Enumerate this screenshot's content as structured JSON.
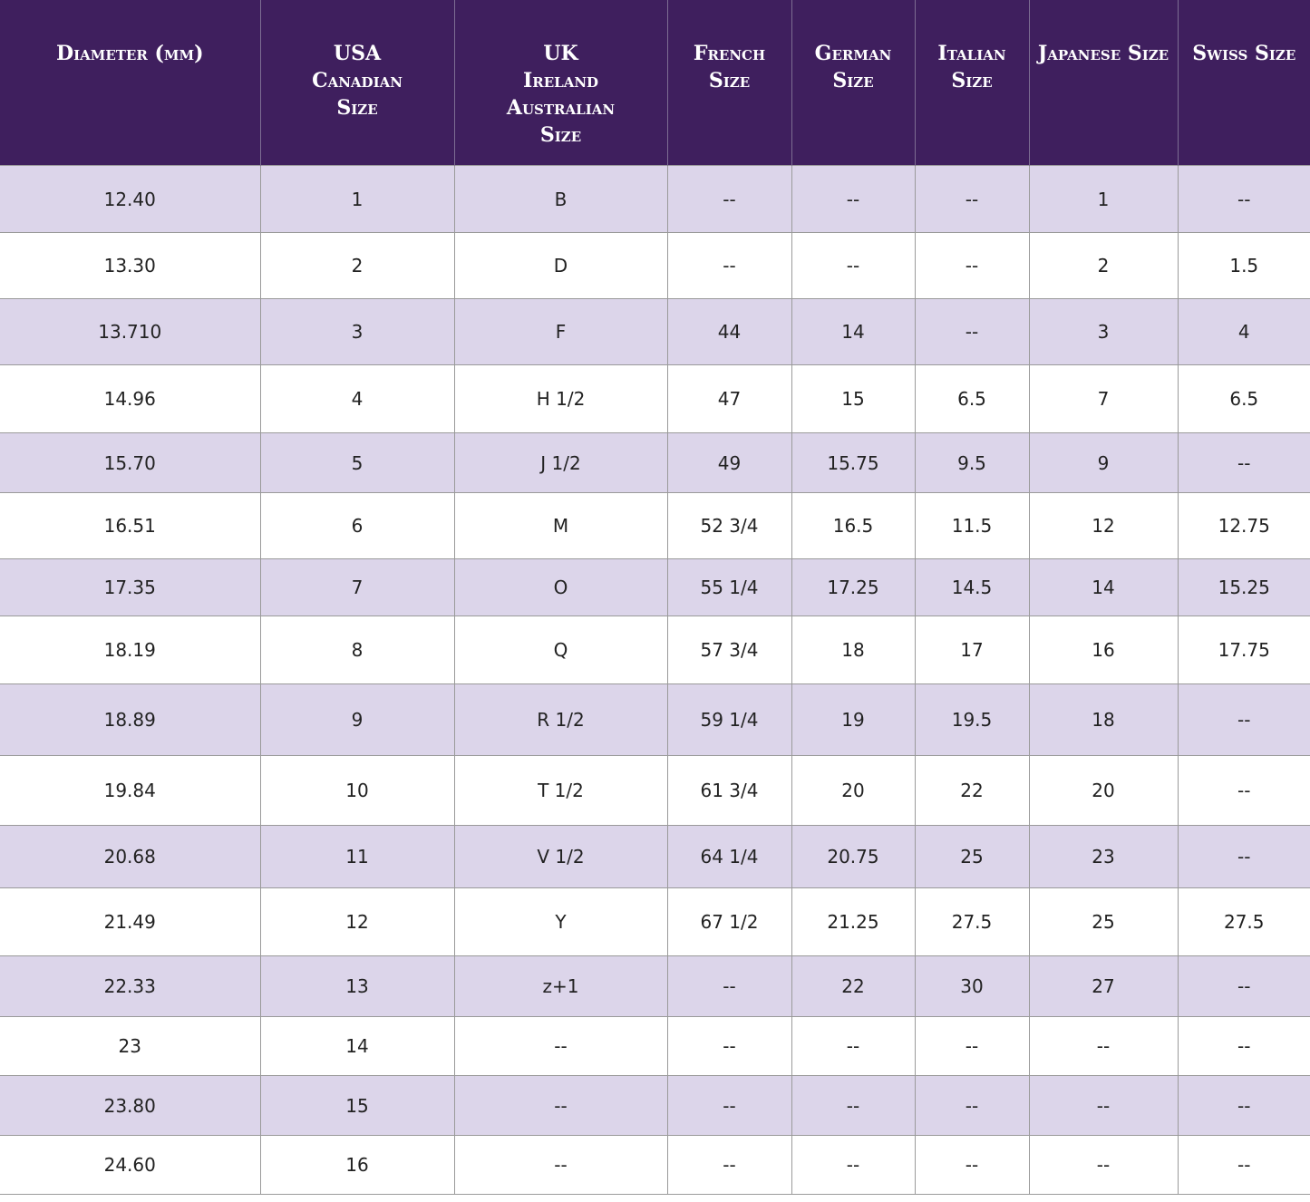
{
  "table": {
    "header": [
      [
        "Diameter (mm)"
      ],
      [
        "USA",
        "Canadian",
        "Size"
      ],
      [
        "UK",
        "Ireland",
        "Australian",
        "Size"
      ],
      [
        "French",
        "Size"
      ],
      [
        "German",
        "Size"
      ],
      [
        "Italian",
        "Size"
      ],
      [
        "Japanese Size"
      ],
      [
        "Swiss Size"
      ]
    ],
    "rows": [
      [
        "12.40",
        "1",
        "B",
        "--",
        "--",
        "--",
        "1",
        "--"
      ],
      [
        "13.30",
        "2",
        "D",
        "--",
        "--",
        "--",
        "2",
        "1.5"
      ],
      [
        "13.710",
        "3",
        "F",
        "44",
        "14",
        "--",
        "3",
        "4"
      ],
      [
        "14.96",
        "4",
        "H 1/2",
        "47",
        "15",
        "6.5",
        "7",
        "6.5"
      ],
      [
        "15.70",
        "5",
        "J 1/2",
        "49",
        "15.75",
        "9.5",
        "9",
        "--"
      ],
      [
        "16.51",
        "6",
        "M",
        "52 3/4",
        "16.5",
        "11.5",
        "12",
        "12.75"
      ],
      [
        "17.35",
        "7",
        "O",
        "55 1/4",
        "17.25",
        "14.5",
        "14",
        "15.25"
      ],
      [
        "18.19",
        "8",
        "Q",
        "57 3/4",
        "18",
        "17",
        "16",
        "17.75"
      ],
      [
        "18.89",
        "9",
        "R 1/2",
        "59 1/4",
        "19",
        "19.5",
        "18",
        "--"
      ],
      [
        "19.84",
        "10",
        "T 1/2",
        "61 3/4",
        "20",
        "22",
        "20",
        "--"
      ],
      [
        "20.68",
        "11",
        "V 1/2",
        "64 1/4",
        "20.75",
        "25",
        "23",
        "--"
      ],
      [
        "21.49",
        "12",
        "Y",
        "67 1/2",
        "21.25",
        "27.5",
        "25",
        "27.5"
      ],
      [
        "22.33",
        "13",
        "z+1",
        "--",
        "22",
        "30",
        "27",
        "--"
      ],
      [
        "23",
        "14",
        "--",
        "--",
        "--",
        "--",
        "--",
        "--"
      ],
      [
        "23.80",
        "15",
        "--",
        "--",
        "--",
        "--",
        "--",
        "--"
      ],
      [
        "24.60",
        "16",
        "--",
        "--",
        "--",
        "--",
        "--",
        "--"
      ]
    ]
  }
}
